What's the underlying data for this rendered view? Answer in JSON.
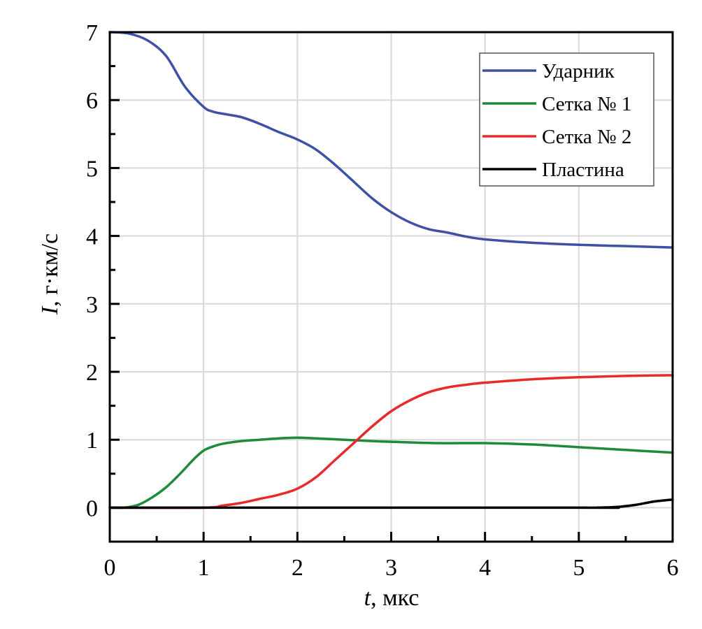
{
  "chart_data": {
    "type": "line",
    "title": "",
    "xlabel_italic": "t",
    "xlabel_rest": ", мкс",
    "ylabel_italic": "I",
    "ylabel_rest": ", г·км/с",
    "xlim": [
      0,
      6
    ],
    "ylim": [
      -0.5,
      7
    ],
    "x_ticks": [
      0,
      1,
      2,
      3,
      4,
      5,
      6
    ],
    "x_tick_labels": [
      "0",
      "1",
      "2",
      "3",
      "4",
      "5",
      "6"
    ],
    "x_minor_ticks": [
      0.5,
      1.5,
      2.5,
      3.5,
      4.5,
      5.5
    ],
    "y_ticks": [
      0,
      1,
      2,
      3,
      4,
      5,
      6,
      7
    ],
    "y_tick_labels": [
      "0",
      "1",
      "2",
      "3",
      "4",
      "5",
      "6",
      "7"
    ],
    "y_minor_ticks": [
      0.5,
      1.5,
      2.5,
      3.5,
      4.5,
      5.5,
      6.5
    ],
    "grid": true,
    "legend_position": "top-right",
    "series": [
      {
        "name": "Ударник",
        "color": "#3f51a5",
        "x": [
          0,
          0.2,
          0.4,
          0.6,
          0.8,
          1.0,
          1.1,
          1.2,
          1.4,
          1.6,
          1.8,
          2.0,
          2.2,
          2.4,
          2.6,
          2.8,
          3.0,
          3.2,
          3.4,
          3.6,
          3.8,
          4.0,
          4.5,
          5.0,
          5.5,
          6.0
        ],
        "y": [
          7.0,
          6.98,
          6.88,
          6.65,
          6.2,
          5.9,
          5.83,
          5.8,
          5.75,
          5.65,
          5.53,
          5.42,
          5.27,
          5.05,
          4.8,
          4.55,
          4.35,
          4.2,
          4.1,
          4.05,
          3.99,
          3.95,
          3.9,
          3.87,
          3.85,
          3.83
        ]
      },
      {
        "name": "Сетка № 1",
        "color": "#1e8a3a",
        "x": [
          0,
          0.15,
          0.3,
          0.45,
          0.6,
          0.75,
          0.9,
          1.0,
          1.1,
          1.2,
          1.4,
          1.6,
          1.8,
          2.0,
          2.2,
          2.5,
          2.8,
          3.0,
          3.5,
          4.0,
          4.5,
          5.0,
          5.5,
          6.0
        ],
        "y": [
          0,
          0,
          0.04,
          0.15,
          0.3,
          0.5,
          0.72,
          0.84,
          0.9,
          0.94,
          0.98,
          1.0,
          1.02,
          1.03,
          1.02,
          1.0,
          0.98,
          0.97,
          0.95,
          0.95,
          0.93,
          0.89,
          0.85,
          0.81
        ]
      },
      {
        "name": "Сетка № 2",
        "color": "#e82a2a",
        "x": [
          0,
          1.0,
          1.2,
          1.4,
          1.6,
          1.8,
          2.0,
          2.2,
          2.4,
          2.6,
          2.8,
          3.0,
          3.2,
          3.4,
          3.6,
          3.8,
          4.0,
          4.5,
          5.0,
          5.5,
          6.0
        ],
        "y": [
          0,
          0,
          0.03,
          0.07,
          0.13,
          0.19,
          0.28,
          0.45,
          0.7,
          0.95,
          1.2,
          1.42,
          1.58,
          1.7,
          1.77,
          1.81,
          1.84,
          1.89,
          1.92,
          1.94,
          1.95
        ]
      },
      {
        "name": "Пластина",
        "color": "#000000",
        "x": [
          0,
          5.0,
          5.2,
          5.4,
          5.6,
          5.8,
          6.0
        ],
        "y": [
          0,
          0,
          0,
          0.01,
          0.04,
          0.09,
          0.12
        ]
      }
    ]
  }
}
